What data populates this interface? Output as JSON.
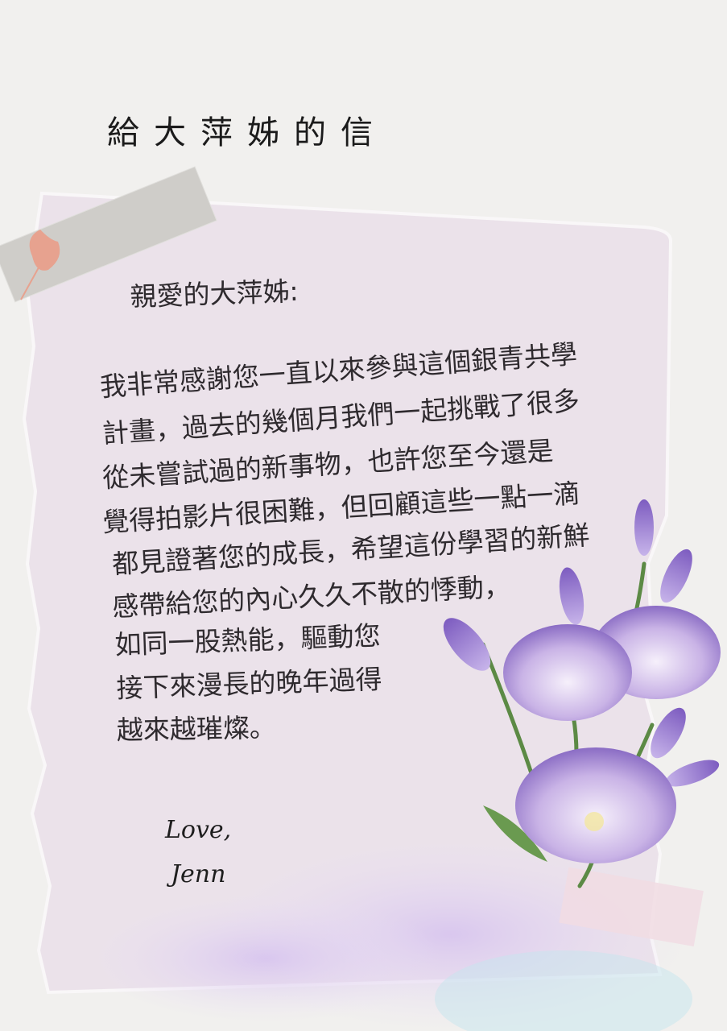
{
  "title": "給大萍姊的信",
  "greeting": "親愛的大萍姊:",
  "body": [
    "我非常感謝您一直以來參與這個銀青共學",
    "計畫，過去的幾個月我們一起挑戰了很多",
    "從未嘗試過的新事物，也許您至今還是",
    "覺得拍影片很困難，但回顧這些一點一滴",
    "都見證著您的成長，希望這份學習的新鮮",
    "感帶給您的內心久久不散的悸動，",
    "如同一股熱能，驅動您",
    "接下來漫長的晚年過得",
    "越來越璀燦。"
  ],
  "closing": {
    "sign_off": "Love,",
    "name": "Jenn"
  }
}
